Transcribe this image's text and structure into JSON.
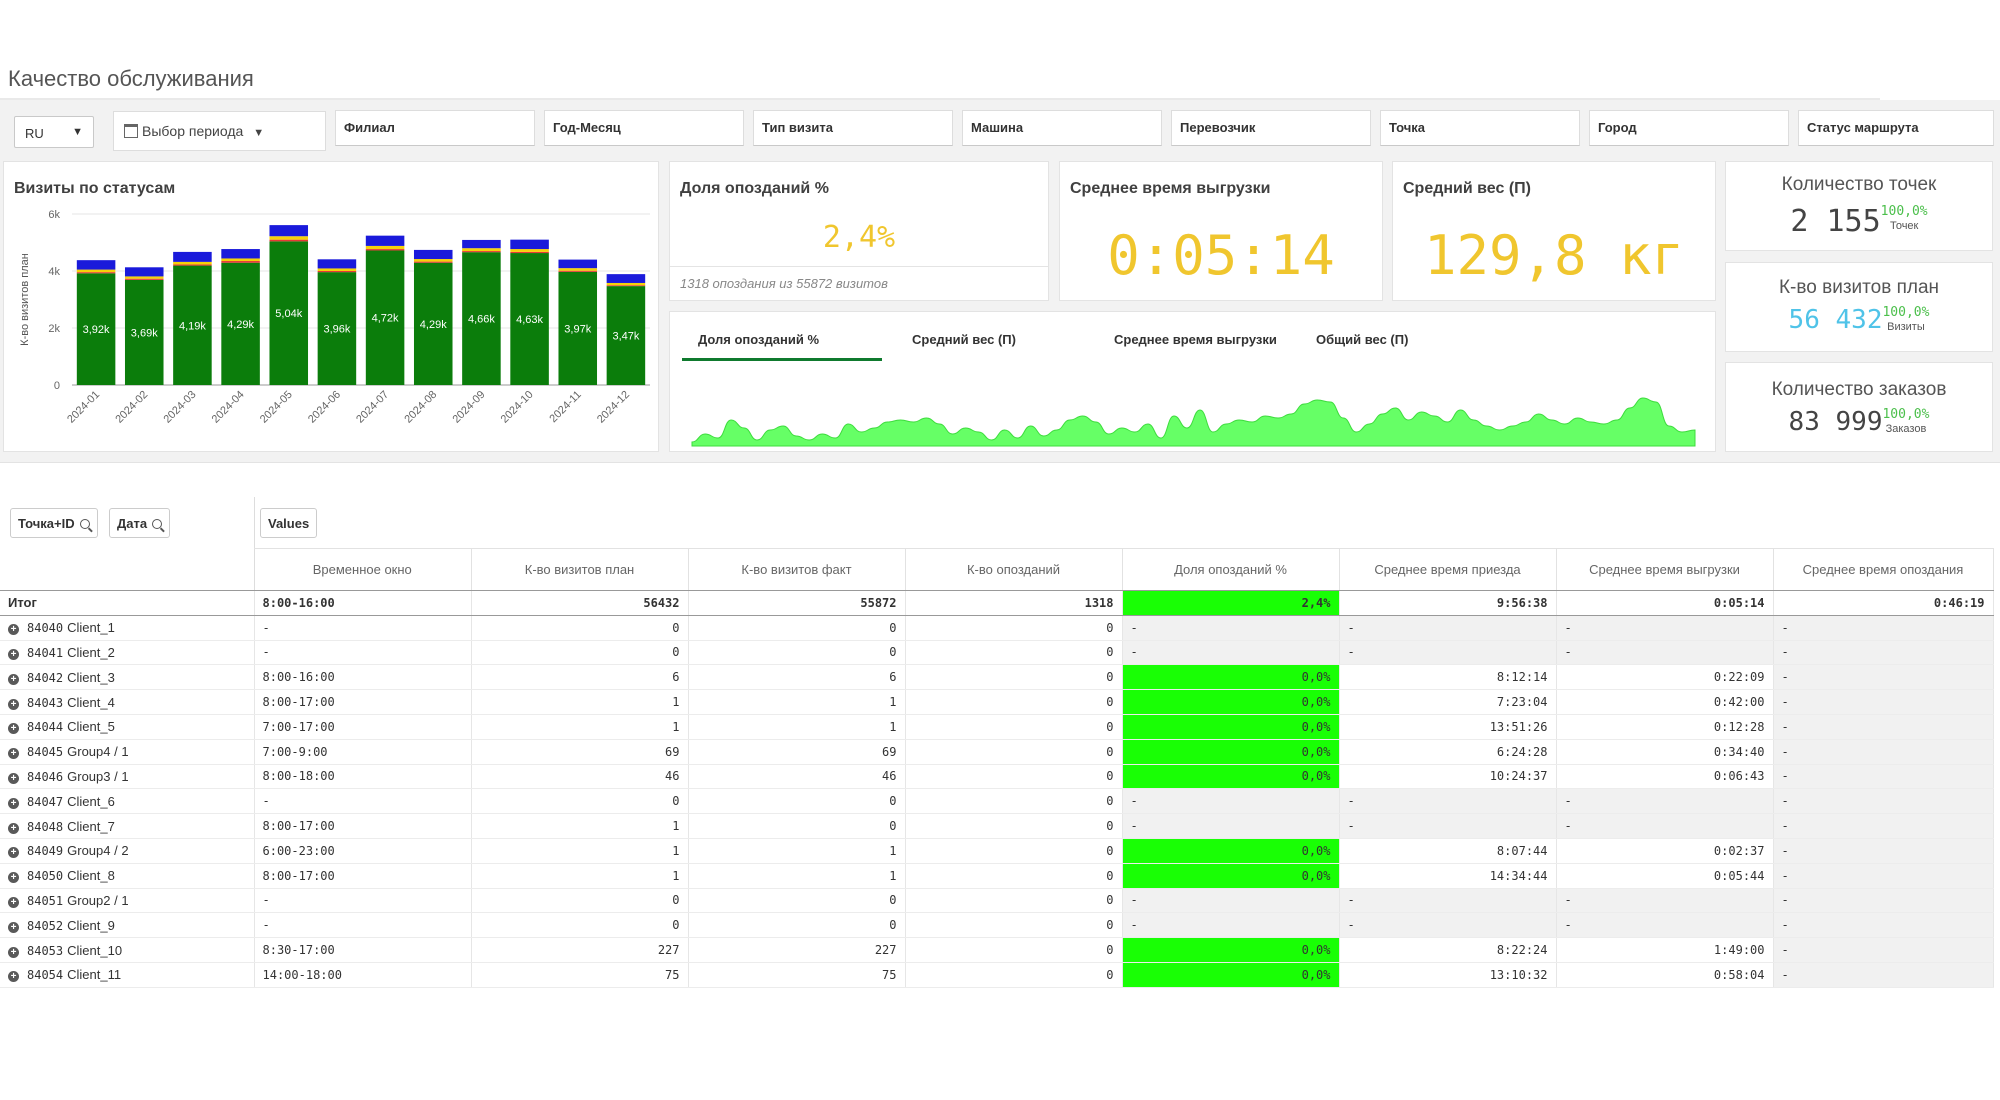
{
  "app": {
    "title": "Качество обслуживания"
  },
  "filters": {
    "lang": "RU",
    "period_label": "Выбор периода",
    "boxes": [
      "Филиал",
      "Год-Месяц",
      "Тип визита",
      "Машина",
      "Перевозчик",
      "Точка",
      "Город",
      "Статус маршрута"
    ]
  },
  "visits_chart": {
    "title": "Визиты по статусам"
  },
  "chart_data": {
    "type": "bar",
    "title": "Визиты по статусам",
    "ylabel": "К-во визитов план",
    "xlabel": "",
    "ylim": [
      0,
      6000
    ],
    "ytick_labels": [
      "0",
      "2k",
      "4k",
      "6k"
    ],
    "categories": [
      "2024-01",
      "2024-02",
      "2024-03",
      "2024-04",
      "2024-05",
      "2024-06",
      "2024-07",
      "2024-08",
      "2024-09",
      "2024-10",
      "2024-11",
      "2024-12"
    ],
    "series": [
      {
        "color": "#0b7d0b",
        "values": [
          3920,
          3690,
          4190,
          4290,
          5040,
          3960,
          4720,
          4290,
          4660,
          4630,
          3970,
          3470
        ],
        "labels": [
          "3,92k",
          "3,69k",
          "4,19k",
          "4,29k",
          "5,04k",
          "3,96k",
          "4,72k",
          "4,29k",
          "4,66k",
          "4,63k",
          "3,97k",
          "3,47k"
        ]
      },
      {
        "color": "#e53935",
        "values": [
          40,
          40,
          40,
          60,
          60,
          40,
          50,
          40,
          40,
          40,
          40,
          30
        ]
      },
      {
        "color": "#f5d20a",
        "values": [
          90,
          80,
          90,
          90,
          120,
          90,
          110,
          90,
          100,
          100,
          90,
          80
        ]
      },
      {
        "color": "#1a1adb",
        "values": [
          330,
          320,
          350,
          330,
          390,
          320,
          360,
          320,
          290,
          330,
          300,
          310
        ]
      }
    ]
  },
  "kpi_late": {
    "title": "Доля опозданий %",
    "value": "2,4%",
    "footer": "1318 опоздания из 55872 визитов"
  },
  "kpi_unload": {
    "title": "Среднее время выгрузки",
    "value": "0:05:14"
  },
  "kpi_weight": {
    "title": "Средний вес (П)",
    "value": "129,8 кг"
  },
  "trend": {
    "tabs": [
      "Доля опозданий %",
      "Средний вес (П)",
      "Среднее время выгрузки",
      "Общий вес (П)"
    ],
    "active_tab": 0,
    "color": "#66ff66",
    "values": [
      0.2,
      0.6,
      0.4,
      1.3,
      0.9,
      0.3,
      0.8,
      1.0,
      0.5,
      0.3,
      0.6,
      0.4,
      1.1,
      0.7,
      0.9,
      1.2,
      1.3,
      1.2,
      1.4,
      1.1,
      0.6,
      0.9,
      0.7,
      0.3,
      0.8,
      0.4,
      1.0,
      0.5,
      0.8,
      1.3,
      1.5,
      1.2,
      0.6,
      0.9,
      0.7,
      1.1,
      0.4,
      1.5,
      0.9,
      1.8,
      0.7,
      1.1,
      1.3,
      1.2,
      1.5,
      1.4,
      1.6,
      2.1,
      2.3,
      2.2,
      1.4,
      0.7,
      1.1,
      1.6,
      1.9,
      1.3,
      1.7,
      1.5,
      1.2,
      1.8,
      1.3,
      1.0,
      0.8,
      1.0,
      1.2,
      1.6,
      1.3,
      1.1,
      1.4,
      1.2,
      1.1,
      1.3,
      1.9,
      2.4,
      2.2,
      1.0,
      0.7,
      0.8
    ]
  },
  "stats": [
    {
      "title": "Количество точек",
      "value": "2 155",
      "pct": "100,0%",
      "sub": "Точек",
      "color": "#444444"
    },
    {
      "title": "К-во визитов план",
      "value": "56 432",
      "pct": "100,0%",
      "sub": "Визиты",
      "color": "#4fc3e8"
    },
    {
      "title": "Количество заказов",
      "value": "83 999",
      "pct": "100,0%",
      "sub": "Заказов",
      "color": "#444444"
    }
  ],
  "table": {
    "dims": [
      "Точка+ID",
      "Дата"
    ],
    "measures_label": "Values",
    "columns": [
      "Временное окно",
      "К-во визитов план",
      "К-во визитов факт",
      "К-во опозданий",
      "Доля опозданий %",
      "Среднее время приезда",
      "Среднее время выгрузки",
      "Среднее время опоздания"
    ],
    "total": {
      "label": "Итог",
      "cells": [
        "8:00-16:00",
        "56432",
        "55872",
        "1318",
        "2,4%",
        "9:56:38",
        "0:05:14",
        "0:46:19"
      ]
    },
    "rows": [
      {
        "id": "84040",
        "name": "Client_1",
        "cells": [
          "-",
          "0",
          "0",
          "0",
          "-",
          "-",
          "-",
          "-"
        ]
      },
      {
        "id": "84041",
        "name": "Client_2",
        "cells": [
          "-",
          "0",
          "0",
          "0",
          "-",
          "-",
          "-",
          "-"
        ]
      },
      {
        "id": "84042",
        "name": "Client_3",
        "cells": [
          "8:00-16:00",
          "6",
          "6",
          "0",
          "0,0%",
          "8:12:14",
          "0:22:09",
          "-"
        ]
      },
      {
        "id": "84043",
        "name": "Client_4",
        "cells": [
          "8:00-17:00",
          "1",
          "1",
          "0",
          "0,0%",
          "7:23:04",
          "0:42:00",
          "-"
        ]
      },
      {
        "id": "84044",
        "name": "Client_5",
        "cells": [
          "7:00-17:00",
          "1",
          "1",
          "0",
          "0,0%",
          "13:51:26",
          "0:12:28",
          "-"
        ]
      },
      {
        "id": "84045",
        "name": "Group4 / 1",
        "cells": [
          "7:00-9:00",
          "69",
          "69",
          "0",
          "0,0%",
          "6:24:28",
          "0:34:40",
          "-"
        ]
      },
      {
        "id": "84046",
        "name": "Group3 / 1",
        "cells": [
          "8:00-18:00",
          "46",
          "46",
          "0",
          "0,0%",
          "10:24:37",
          "0:06:43",
          "-"
        ]
      },
      {
        "id": "84047",
        "name": "Client_6",
        "cells": [
          "-",
          "0",
          "0",
          "0",
          "-",
          "-",
          "-",
          "-"
        ]
      },
      {
        "id": "84048",
        "name": "Client_7",
        "cells": [
          "8:00-17:00",
          "1",
          "0",
          "0",
          "-",
          "-",
          "-",
          "-"
        ]
      },
      {
        "id": "84049",
        "name": "Group4 / 2",
        "cells": [
          "6:00-23:00",
          "1",
          "1",
          "0",
          "0,0%",
          "8:07:44",
          "0:02:37",
          "-"
        ]
      },
      {
        "id": "84050",
        "name": "Client_8",
        "cells": [
          "8:00-17:00",
          "1",
          "1",
          "0",
          "0,0%",
          "14:34:44",
          "0:05:44",
          "-"
        ]
      },
      {
        "id": "84051",
        "name": "Group2 / 1",
        "cells": [
          "-",
          "0",
          "0",
          "0",
          "-",
          "-",
          "-",
          "-"
        ]
      },
      {
        "id": "84052",
        "name": "Client_9",
        "cells": [
          "-",
          "0",
          "0",
          "0",
          "-",
          "-",
          "-",
          "-"
        ]
      },
      {
        "id": "84053",
        "name": "Client_10",
        "cells": [
          "8:30-17:00",
          "227",
          "227",
          "0",
          "0,0%",
          "8:22:24",
          "1:49:00",
          "-"
        ]
      },
      {
        "id": "84054",
        "name": "Client_11",
        "cells": [
          "14:00-18:00",
          "75",
          "75",
          "0",
          "0,0%",
          "13:10:32",
          "0:58:04",
          "-"
        ]
      }
    ]
  }
}
